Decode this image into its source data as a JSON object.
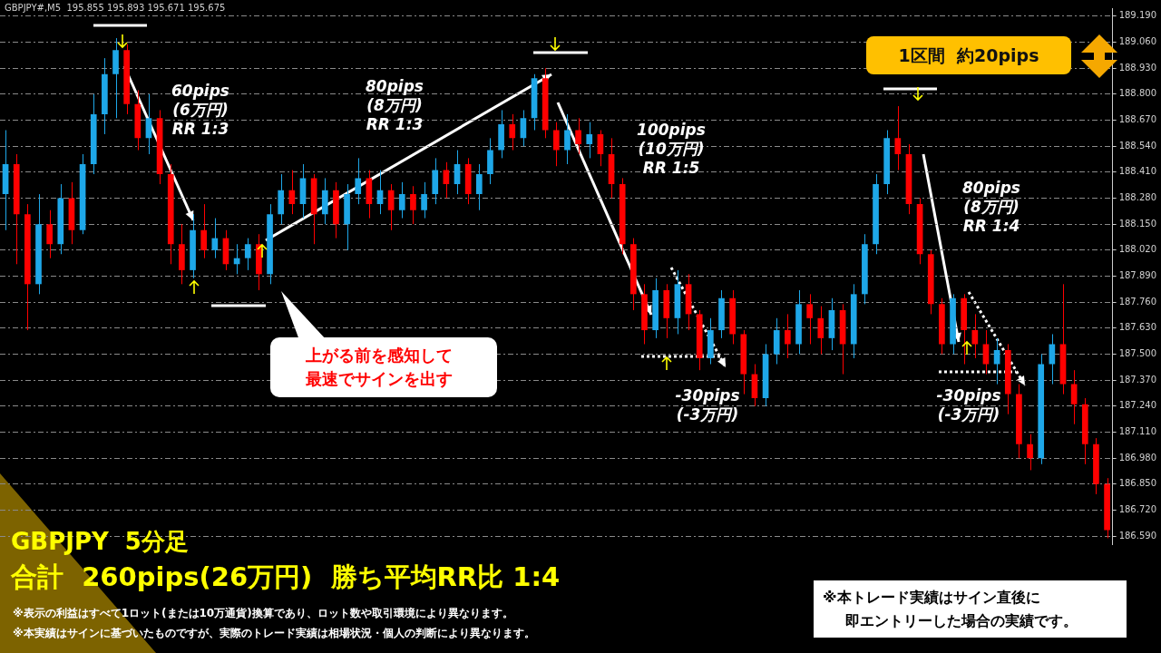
{
  "chart_data": {
    "type": "candlestick",
    "title": "GBPJPY  5分足",
    "subtitle": "合計  260pips(26万円)  勝ち平均RR比 1:4",
    "annotations": [
      "GBPJPY#,M5  195.855 195.893 195.671 195.675",
      "60pips\n(6万円)\nRR 1:3",
      "80pips\n(8万円)\nRR 1:3",
      "100pips\n(10万円)\nRR 1:5",
      "80pips\n(8万円)\nRR 1:4",
      "-30pips\n(-3万円)",
      "-30pips\n(-3万円)",
      "1区間  約20pips",
      "上がる前を感知して最速でサインを出す",
      "※表示の利益はすべて1ロット(または10万通貨)換算であり、ロット数や取引環境により異なります。",
      "※本実績はサインに基づいたものですが、実際のトレード実績は相場状況・個人の判断により異なります。",
      "※本トレード実績はサイン直後に",
      "即エントリーした場合の実績です。"
    ],
    "categories": [
      null,
      null,
      null,
      null,
      null,
      null,
      null,
      null,
      null,
      null,
      null,
      null,
      null,
      null,
      null,
      null,
      null,
      null,
      null,
      null,
      null,
      null,
      null,
      null,
      null,
      null,
      null,
      null,
      null,
      null,
      null,
      null,
      null,
      null,
      null,
      null,
      null,
      null,
      null,
      null,
      null,
      null,
      null,
      null,
      null,
      null,
      null,
      null,
      null,
      null,
      null,
      null,
      null,
      null,
      null,
      null,
      null,
      null,
      null,
      null,
      null,
      null,
      null,
      null,
      null,
      null,
      null,
      null,
      null,
      null,
      null,
      null,
      null,
      null,
      null,
      null,
      null,
      null,
      null,
      null,
      null,
      null,
      null,
      null,
      null,
      null,
      null,
      null,
      null,
      null,
      null,
      null,
      null,
      null,
      null,
      null,
      null,
      null,
      null,
      null,
      null
    ],
    "ohlc": [
      [
        188.3,
        188.62,
        188.12,
        188.45
      ],
      [
        188.45,
        188.5,
        187.95,
        188.2
      ],
      [
        188.2,
        188.25,
        187.62,
        187.85
      ],
      [
        187.85,
        188.3,
        187.8,
        188.15
      ],
      [
        188.15,
        188.22,
        187.98,
        188.05
      ],
      [
        188.05,
        188.35,
        188.0,
        188.28
      ],
      [
        188.28,
        188.36,
        188.05,
        188.12
      ],
      [
        188.12,
        188.5,
        188.1,
        188.45
      ],
      [
        188.45,
        188.8,
        188.4,
        188.7
      ],
      [
        188.7,
        188.98,
        188.6,
        188.9
      ],
      [
        188.9,
        189.08,
        188.68,
        189.02
      ],
      [
        189.02,
        189.05,
        188.7,
        188.75
      ],
      [
        188.75,
        188.82,
        188.52,
        188.58
      ],
      [
        188.58,
        188.8,
        188.5,
        188.68
      ],
      [
        188.68,
        188.72,
        188.35,
        188.4
      ],
      [
        188.4,
        188.45,
        187.95,
        188.05
      ],
      [
        188.05,
        188.15,
        187.85,
        187.92
      ],
      [
        187.92,
        188.2,
        187.88,
        188.12
      ],
      [
        188.12,
        188.25,
        187.98,
        188.02
      ],
      [
        188.02,
        188.18,
        187.98,
        188.08
      ],
      [
        188.08,
        188.12,
        187.92,
        187.95
      ],
      [
        187.95,
        188.05,
        187.9,
        187.98
      ],
      [
        187.98,
        188.08,
        187.92,
        188.05
      ],
      [
        188.05,
        188.1,
        187.82,
        187.9
      ],
      [
        187.9,
        188.25,
        187.85,
        188.2
      ],
      [
        188.2,
        188.4,
        188.15,
        188.32
      ],
      [
        188.32,
        188.42,
        188.2,
        188.25
      ],
      [
        188.25,
        188.45,
        188.18,
        188.38
      ],
      [
        188.38,
        188.4,
        188.05,
        188.2
      ],
      [
        188.2,
        188.38,
        188.15,
        188.32
      ],
      [
        188.32,
        188.36,
        188.08,
        188.15
      ],
      [
        188.15,
        188.35,
        188.02,
        188.3
      ],
      [
        188.3,
        188.48,
        188.25,
        188.38
      ],
      [
        188.38,
        188.42,
        188.18,
        188.25
      ],
      [
        188.25,
        188.42,
        188.2,
        188.32
      ],
      [
        188.32,
        188.35,
        188.12,
        188.22
      ],
      [
        188.22,
        188.36,
        188.18,
        188.3
      ],
      [
        188.3,
        188.34,
        188.15,
        188.22
      ],
      [
        188.22,
        188.36,
        188.18,
        188.3
      ],
      [
        188.3,
        188.48,
        188.25,
        188.42
      ],
      [
        188.42,
        188.46,
        188.28,
        188.35
      ],
      [
        188.35,
        188.52,
        188.3,
        188.45
      ],
      [
        188.45,
        188.48,
        188.25,
        188.3
      ],
      [
        188.3,
        188.45,
        188.22,
        188.4
      ],
      [
        188.4,
        188.58,
        188.35,
        188.52
      ],
      [
        188.52,
        188.72,
        188.48,
        188.65
      ],
      [
        188.65,
        188.7,
        188.52,
        188.58
      ],
      [
        188.58,
        188.72,
        188.54,
        188.68
      ],
      [
        188.68,
        188.9,
        188.62,
        188.88
      ],
      [
        188.88,
        188.93,
        188.58,
        188.62
      ],
      [
        188.62,
        188.66,
        188.44,
        188.52
      ],
      [
        188.52,
        188.7,
        188.45,
        188.62
      ],
      [
        188.62,
        188.68,
        188.5,
        188.55
      ],
      [
        188.55,
        188.66,
        188.48,
        188.6
      ],
      [
        188.6,
        188.62,
        188.44,
        188.5
      ],
      [
        188.5,
        188.58,
        188.28,
        188.35
      ],
      [
        188.35,
        188.38,
        188.0,
        188.05
      ],
      [
        188.05,
        188.08,
        187.72,
        187.8
      ],
      [
        187.8,
        187.85,
        187.55,
        187.62
      ],
      [
        187.62,
        187.88,
        187.58,
        187.82
      ],
      [
        187.82,
        187.85,
        187.58,
        187.68
      ],
      [
        187.68,
        187.92,
        187.6,
        187.85
      ],
      [
        187.85,
        187.9,
        187.62,
        187.7
      ],
      [
        187.7,
        187.72,
        187.42,
        187.48
      ],
      [
        187.48,
        187.68,
        187.45,
        187.62
      ],
      [
        187.62,
        187.82,
        187.58,
        187.78
      ],
      [
        187.78,
        187.82,
        187.55,
        187.6
      ],
      [
        187.6,
        187.62,
        187.3,
        187.4
      ],
      [
        187.4,
        187.45,
        187.24,
        187.28
      ],
      [
        187.28,
        187.55,
        187.24,
        187.5
      ],
      [
        187.5,
        187.68,
        187.45,
        187.62
      ],
      [
        187.62,
        187.7,
        187.48,
        187.55
      ],
      [
        187.55,
        187.82,
        187.5,
        187.75
      ],
      [
        187.75,
        187.8,
        187.55,
        187.68
      ],
      [
        187.68,
        187.74,
        187.5,
        187.58
      ],
      [
        187.58,
        187.78,
        187.52,
        187.72
      ],
      [
        187.72,
        187.75,
        187.4,
        187.55
      ],
      [
        187.55,
        187.85,
        187.48,
        187.8
      ],
      [
        187.8,
        188.1,
        187.75,
        188.05
      ],
      [
        188.05,
        188.4,
        188.0,
        188.35
      ],
      [
        188.35,
        188.62,
        188.3,
        188.58
      ],
      [
        188.58,
        188.74,
        188.42,
        188.5
      ],
      [
        188.5,
        188.55,
        188.2,
        188.25
      ],
      [
        188.25,
        188.28,
        187.95,
        188.0
      ],
      [
        188.0,
        188.02,
        187.7,
        187.75
      ],
      [
        187.75,
        187.78,
        187.5,
        187.55
      ],
      [
        187.55,
        187.8,
        187.5,
        187.78
      ],
      [
        187.78,
        187.8,
        187.45,
        187.62
      ],
      [
        187.62,
        187.7,
        187.48,
        187.55
      ],
      [
        187.55,
        187.62,
        187.4,
        187.45
      ],
      [
        187.45,
        187.58,
        187.35,
        187.52
      ],
      [
        187.52,
        187.55,
        187.2,
        187.3
      ],
      [
        187.3,
        187.35,
        186.98,
        187.05
      ],
      [
        187.05,
        187.1,
        186.92,
        186.98
      ],
      [
        186.98,
        187.5,
        186.95,
        187.45
      ],
      [
        187.45,
        187.6,
        187.35,
        187.55
      ],
      [
        187.55,
        187.85,
        187.3,
        187.35
      ],
      [
        187.35,
        187.42,
        187.15,
        187.25
      ],
      [
        187.25,
        187.28,
        186.95,
        187.05
      ],
      [
        187.05,
        187.08,
        186.8,
        186.85
      ],
      [
        186.85,
        186.88,
        186.58,
        186.62
      ]
    ],
    "colors": [
      "#1ea7e8",
      "#ff0000",
      "#ff0000",
      "#1ea7e8",
      "#ff0000",
      "#1ea7e8",
      "#ff0000",
      "#1ea7e8",
      "#1ea7e8",
      "#1ea7e8",
      "#1ea7e8",
      "#ff0000",
      "#ff0000",
      "#1ea7e8",
      "#ff0000",
      "#ff0000",
      "#ff0000",
      "#1ea7e8",
      "#ff0000",
      "#1ea7e8",
      "#ff0000",
      "#1ea7e8",
      "#1ea7e8",
      "#ff0000",
      "#1ea7e8",
      "#1ea7e8",
      "#ff0000",
      "#1ea7e8",
      "#ff0000",
      "#1ea7e8",
      "#ff0000",
      "#1ea7e8",
      "#1ea7e8",
      "#ff0000",
      "#1ea7e8",
      "#ff0000",
      "#1ea7e8",
      "#ff0000",
      "#1ea7e8",
      "#1ea7e8",
      "#ff0000",
      "#1ea7e8",
      "#ff0000",
      "#1ea7e8",
      "#1ea7e8",
      "#1ea7e8",
      "#ff0000",
      "#1ea7e8",
      "#1ea7e8",
      "#ff0000",
      "#ff0000",
      "#1ea7e8",
      "#ff0000",
      "#1ea7e8",
      "#ff0000",
      "#ff0000",
      "#ff0000",
      "#ff0000",
      "#ff0000",
      "#1ea7e8",
      "#ff0000",
      "#1ea7e8",
      "#ff0000",
      "#ff0000",
      "#1ea7e8",
      "#1ea7e8",
      "#ff0000",
      "#ff0000",
      "#ff0000",
      "#1ea7e8",
      "#1ea7e8",
      "#ff0000",
      "#1ea7e8",
      "#ff0000",
      "#ff0000",
      "#1ea7e8",
      "#ff0000",
      "#1ea7e8",
      "#1ea7e8",
      "#1ea7e8",
      "#1ea7e8",
      "#ff0000",
      "#ff0000",
      "#ff0000",
      "#ff0000",
      "#ff0000",
      "#1ea7e8",
      "#ff0000",
      "#ff0000",
      "#ff0000",
      "#1ea7e8",
      "#ff0000",
      "#ff0000",
      "#ff0000",
      "#1ea7e8",
      "#1ea7e8",
      "#ff0000",
      "#ff0000",
      "#ff0000",
      "#ff0000",
      "#ff0000"
    ],
    "ylim": [
      186.55,
      189.23
    ],
    "yticks": [
      {
        "value": 186.59,
        "label": "186.590"
      },
      {
        "value": 186.72,
        "label": "186.720"
      },
      {
        "value": 186.85,
        "label": "186.850"
      },
      {
        "value": 186.98,
        "label": "186.980"
      },
      {
        "value": 187.11,
        "label": "187.110"
      },
      {
        "value": 187.24,
        "label": "187.240"
      },
      {
        "value": 187.37,
        "label": "187.370"
      },
      {
        "value": 187.5,
        "label": "187.500"
      },
      {
        "value": 187.63,
        "label": "187.630"
      },
      {
        "value": 187.76,
        "label": "187.760"
      },
      {
        "value": 187.89,
        "label": "187.890"
      },
      {
        "value": 188.02,
        "label": "188.020"
      },
      {
        "value": 188.15,
        "label": "188.150"
      },
      {
        "value": 188.28,
        "label": "188.280"
      },
      {
        "value": 188.41,
        "label": "188.410"
      },
      {
        "value": 188.54,
        "label": "188.540"
      },
      {
        "value": 188.67,
        "label": "188.670"
      },
      {
        "value": 188.8,
        "label": "188.800"
      },
      {
        "value": 188.93,
        "label": "188.930"
      },
      {
        "value": 189.06,
        "label": "189.060"
      },
      {
        "value": 189.19,
        "label": "189.190"
      }
    ],
    "grid": "y",
    "legend": false
  }
}
